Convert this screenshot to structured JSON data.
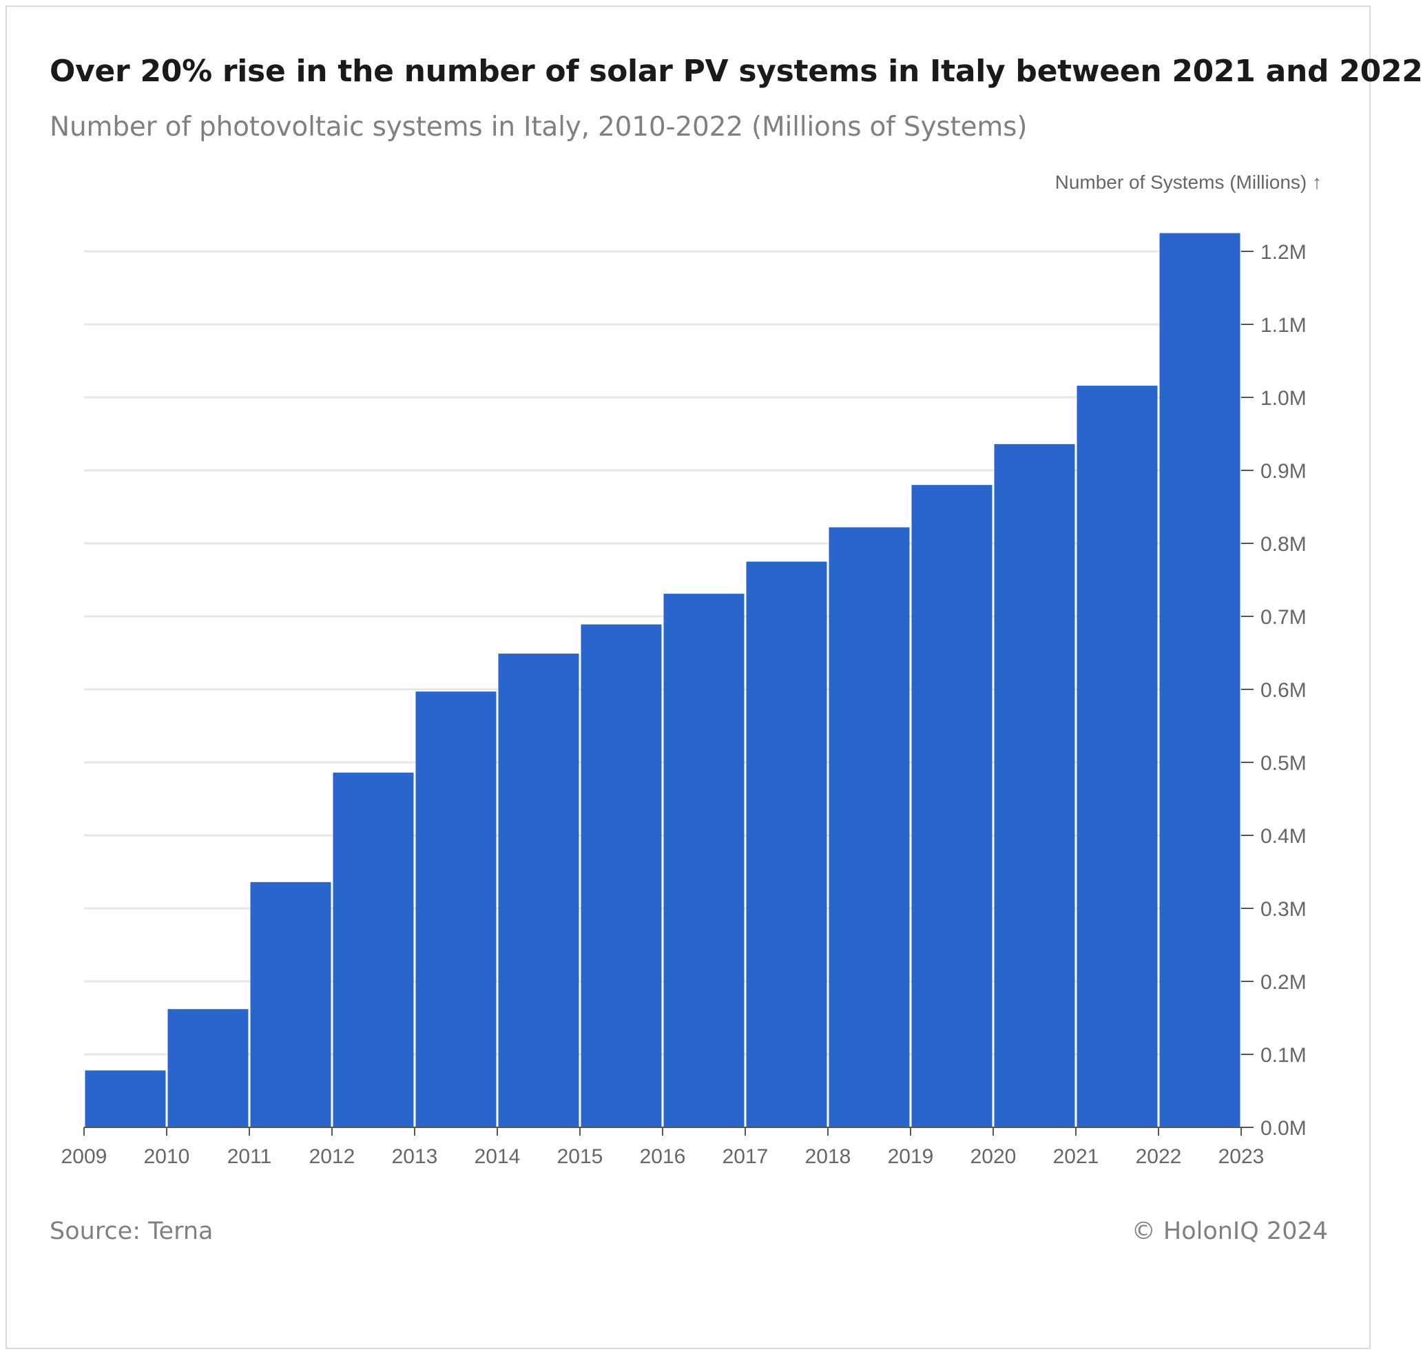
{
  "title": "Over 20% rise in the number of solar PV systems in Italy between 2021 and 2022",
  "subtitle": "Number of photovoltaic systems in Italy, 2010-2022 (Millions of Systems)",
  "footer": {
    "source": "Source: Terna",
    "copyright": "© HolonIQ 2024"
  },
  "colors": {
    "bar": "#2a65cc",
    "grid": "#e6e6e6",
    "axis": "#555555",
    "text": "#666666"
  },
  "chart_data": {
    "type": "bar",
    "ylabel": "Number of Systems (Millions) ↑",
    "xlabel": "",
    "x_ticks": [
      "2009",
      "2010",
      "2011",
      "2012",
      "2013",
      "2014",
      "2015",
      "2016",
      "2017",
      "2018",
      "2019",
      "2020",
      "2021",
      "2022",
      "2023"
    ],
    "y_ticks": [
      "0.0M",
      "0.1M",
      "0.2M",
      "0.3M",
      "0.4M",
      "0.5M",
      "0.6M",
      "0.7M",
      "0.8M",
      "0.9M",
      "1.0M",
      "1.1M",
      "1.2M"
    ],
    "ylim": [
      0,
      1.2
    ],
    "y_axis_position": "right",
    "grid": true,
    "bins": [
      {
        "start": 2009,
        "end": 2010,
        "value": 0.078
      },
      {
        "start": 2010,
        "end": 2011,
        "value": 0.162
      },
      {
        "start": 2011,
        "end": 2012,
        "value": 0.336
      },
      {
        "start": 2012,
        "end": 2013,
        "value": 0.486
      },
      {
        "start": 2013,
        "end": 2014,
        "value": 0.597
      },
      {
        "start": 2014,
        "end": 2015,
        "value": 0.649
      },
      {
        "start": 2015,
        "end": 2016,
        "value": 0.689
      },
      {
        "start": 2016,
        "end": 2017,
        "value": 0.731
      },
      {
        "start": 2017,
        "end": 2018,
        "value": 0.775
      },
      {
        "start": 2018,
        "end": 2019,
        "value": 0.822
      },
      {
        "start": 2019,
        "end": 2020,
        "value": 0.88
      },
      {
        "start": 2020,
        "end": 2021,
        "value": 0.936
      },
      {
        "start": 2021,
        "end": 2022,
        "value": 1.016
      },
      {
        "start": 2022,
        "end": 2023,
        "value": 1.225
      }
    ]
  }
}
